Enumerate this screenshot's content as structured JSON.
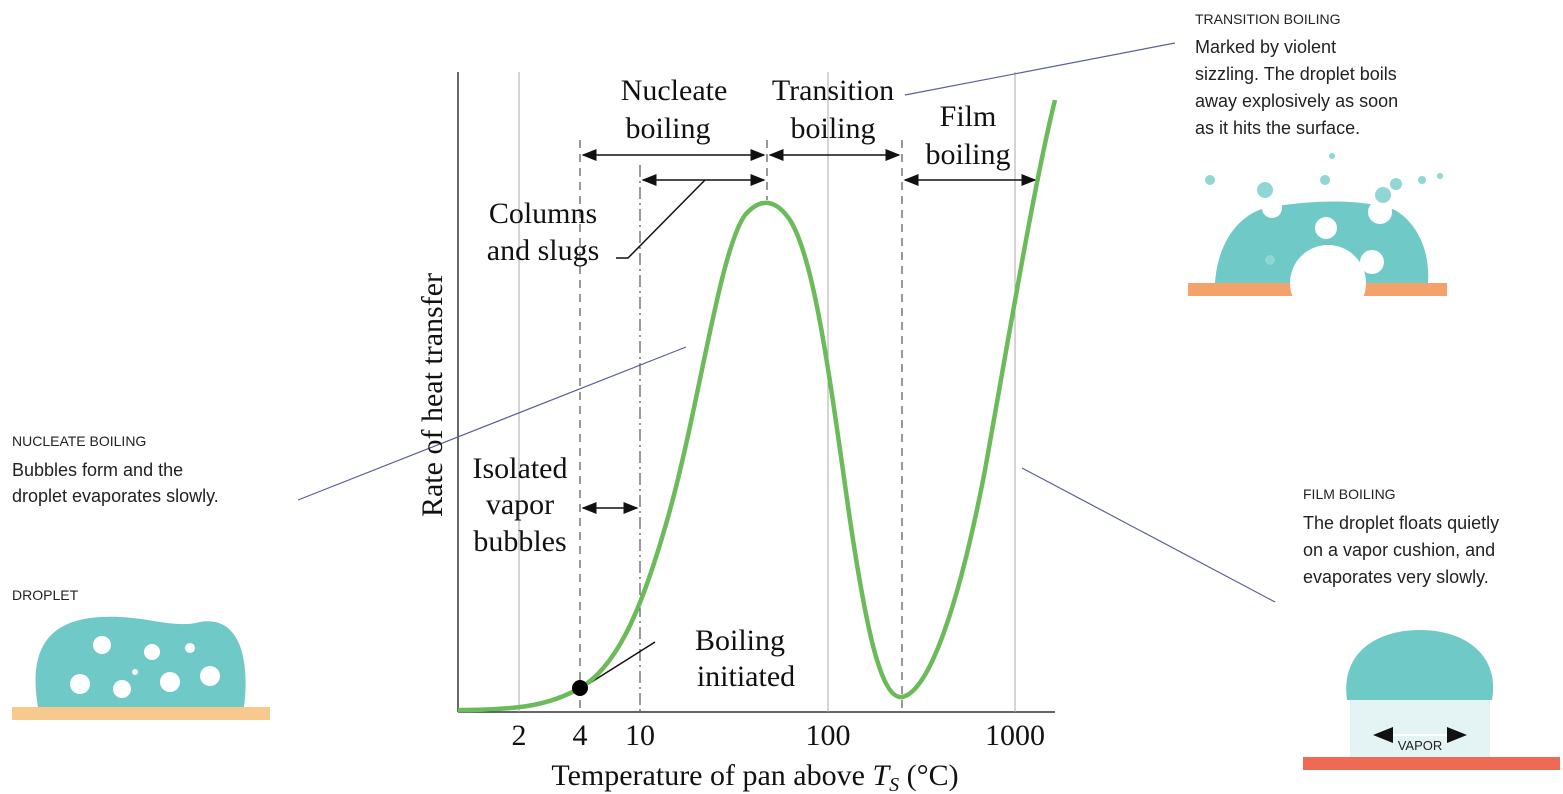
{
  "axes": {
    "y_label": "Rate of heat transfer",
    "x_label": [
      "Temperature of pan above ",
      "T",
      "S",
      " (°C)"
    ],
    "x_ticks": [
      "2",
      "4",
      "10",
      "100",
      "1000"
    ]
  },
  "regions": {
    "nucleate": [
      "Nucleate",
      "boiling"
    ],
    "transition": [
      "Transition",
      "boiling"
    ],
    "film": [
      "Film",
      "boiling"
    ],
    "columns": [
      "Columns",
      "and slugs"
    ],
    "isolated": [
      "Isolated",
      "vapor",
      "bubbles"
    ],
    "initiated": [
      "Boiling",
      "initiated"
    ]
  },
  "notes": {
    "nucleate": {
      "title": "NUCLEATE BOILING",
      "lines": [
        "Bubbles form and the",
        "droplet evaporates slowly."
      ]
    },
    "droplet": {
      "title": "DROPLET"
    },
    "transition": {
      "title": "TRANSITION BOILING",
      "lines": [
        "Marked by violent",
        "sizzling. The droplet boils",
        "away explosively as soon",
        "as it hits the surface."
      ]
    },
    "film": {
      "title": "FILM BOILING",
      "lines": [
        "The droplet floats quietly",
        "on a vapor cushion, and",
        "evaporates very slowly."
      ],
      "vapor": "VAPOR"
    }
  }
}
